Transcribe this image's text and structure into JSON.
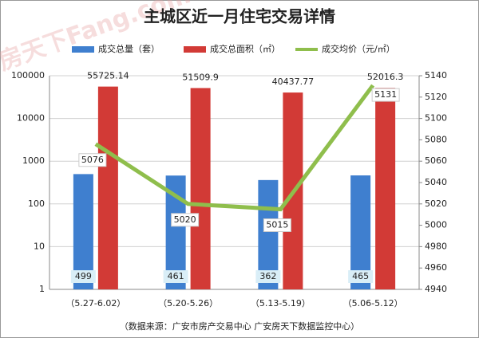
{
  "chart_data": {
    "type": "bar-line",
    "title": "主城区近一月住宅交易详情",
    "watermark": "房天下Fang.com",
    "source": "（数据来源：广安市房产交易中心 广安房天下数据监控中心）",
    "categories": [
      "（5.27-6.02）",
      "（5.20-5.26）",
      "（5.13-5.19）",
      "（5.06-5.12）"
    ],
    "series": [
      {
        "name": "成交总量（套）",
        "type": "bar",
        "color": "#3f7fcf",
        "values": [
          499,
          461,
          362,
          465
        ]
      },
      {
        "name": "成交总面积（㎡）",
        "type": "bar",
        "color": "#d23a36",
        "values": [
          55725.14,
          51509.9,
          40437.77,
          52016.3
        ]
      },
      {
        "name": "成交均价（元/㎡）",
        "type": "line",
        "axis": "y2",
        "color": "#8fbe4c",
        "values": [
          5076,
          5020,
          5015,
          5131
        ]
      }
    ],
    "ylim": [
      1,
      100000
    ],
    "yticks": [
      1,
      10,
      100,
      1000,
      10000,
      100000
    ],
    "log_y": true,
    "y2lim": [
      4940,
      5140
    ],
    "y2ticks": [
      4940,
      4960,
      4980,
      5000,
      5020,
      5040,
      5060,
      5080,
      5100,
      5120,
      5140
    ],
    "grid": true
  }
}
